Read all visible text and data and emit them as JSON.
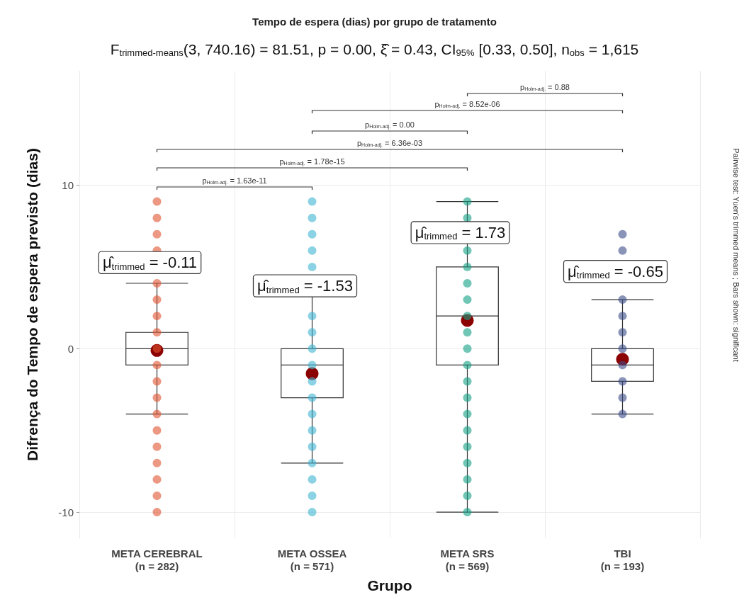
{
  "chart_data": {
    "type": "box",
    "title": "Tempo de espera (dias) por grupo de tratamento",
    "subtitle": "F$_{trimmed-means}$(3, 740.16) = 81.51, p = 0.00, ξ̂ = 0.43, CI$_{95%}$ [0.33, 0.50], n$_{obs}$ = 1,615",
    "xlabel": "Grupo",
    "ylabel": "Difrença do Tempo de espera previsto (dias)",
    "categories": [
      "META CEREBRAL\n(n = 282)",
      "META OSSEA\n(n = 571)",
      "META SRS\n(n = 569)",
      "TBI\n(n = 193)"
    ],
    "boxes": [
      {
        "low": -4,
        "q1": -1,
        "median": 0,
        "q3": 1,
        "high": 4,
        "mean": -0.11
      },
      {
        "low": -7,
        "q1": -3,
        "median": -1,
        "q3": 0,
        "high": 4,
        "mean": -1.53
      },
      {
        "low": -10,
        "q1": -1,
        "median": 2,
        "q3": 5,
        "high": 9,
        "mean": 1.73
      },
      {
        "low": -4,
        "q1": -2,
        "median": -1,
        "q3": 0,
        "high": 3,
        "mean": -0.65
      }
    ],
    "series": [
      {
        "type": "scatter",
        "color": "#e0532f",
        "x": [
          "META CEREBRAL\n(n = 282)",
          "META CEREBRAL\n(n = 282)",
          "META CEREBRAL\n(n = 282)",
          "META CEREBRAL\n(n = 282)",
          "META CEREBRAL\n(n = 282)",
          "META CEREBRAL\n(n = 282)",
          "META CEREBRAL\n(n = 282)",
          "META CEREBRAL\n(n = 282)",
          "META CEREBRAL\n(n = 282)",
          "META CEREBRAL\n(n = 282)",
          "META CEREBRAL\n(n = 282)",
          "META CEREBRAL\n(n = 282)",
          "META CEREBRAL\n(n = 282)",
          "META CEREBRAL\n(n = 282)",
          "META CEREBRAL\n(n = 282)",
          "META CEREBRAL\n(n = 282)",
          "META CEREBRAL\n(n = 282)",
          "META CEREBRAL\n(n = 282)",
          "META CEREBRAL\n(n = 282)"
        ],
        "values": [
          9,
          8,
          7,
          6,
          4,
          3,
          2,
          1,
          0,
          -1,
          -2,
          -3,
          -4,
          -5,
          -6,
          -7,
          -8,
          -9,
          -10
        ]
      },
      {
        "type": "scatter",
        "color": "#3eb4d2",
        "x": [
          "META OSSEA\n(n = 571)",
          "META OSSEA\n(n = 571)",
          "META OSSEA\n(n = 571)",
          "META OSSEA\n(n = 571)",
          "META OSSEA\n(n = 571)",
          "META OSSEA\n(n = 571)",
          "META OSSEA\n(n = 571)",
          "META OSSEA\n(n = 571)",
          "META OSSEA\n(n = 571)",
          "META OSSEA\n(n = 571)",
          "META OSSEA\n(n = 571)",
          "META OSSEA\n(n = 571)",
          "META OSSEA\n(n = 571)",
          "META OSSEA\n(n = 571)",
          "META OSSEA\n(n = 571)",
          "META OSSEA\n(n = 571)",
          "META OSSEA\n(n = 571)",
          "META OSSEA\n(n = 571)"
        ],
        "values": [
          9,
          8,
          7,
          6,
          5,
          2,
          1,
          0,
          -1,
          -2,
          -3,
          -4,
          -5,
          -6,
          -7,
          -8,
          -9,
          -10
        ]
      },
      {
        "type": "scatter",
        "color": "#14a085",
        "x": [
          "META SRS\n(n = 569)",
          "META SRS\n(n = 569)",
          "META SRS\n(n = 569)",
          "META SRS\n(n = 569)",
          "META SRS\n(n = 569)",
          "META SRS\n(n = 569)",
          "META SRS\n(n = 569)",
          "META SRS\n(n = 569)",
          "META SRS\n(n = 569)",
          "META SRS\n(n = 569)",
          "META SRS\n(n = 569)",
          "META SRS\n(n = 569)",
          "META SRS\n(n = 569)",
          "META SRS\n(n = 569)",
          "META SRS\n(n = 569)",
          "META SRS\n(n = 569)",
          "META SRS\n(n = 569)",
          "META SRS\n(n = 569)",
          "META SRS\n(n = 569)"
        ],
        "values": [
          9,
          8,
          6,
          5,
          4,
          3,
          2,
          1,
          0,
          -1,
          -2,
          -3,
          -4,
          -5,
          -6,
          -7,
          -8,
          -9,
          -10
        ]
      },
      {
        "type": "scatter",
        "color": "#3c4d88",
        "x": [
          "TBI\n(n = 193)",
          "TBI\n(n = 193)",
          "TBI\n(n = 193)",
          "TBI\n(n = 193)",
          "TBI\n(n = 193)",
          "TBI\n(n = 193)",
          "TBI\n(n = 193)",
          "TBI\n(n = 193)",
          "TBI\n(n = 193)",
          "TBI\n(n = 193)"
        ],
        "values": [
          7,
          6,
          3,
          2,
          1,
          0,
          -1,
          -2,
          -3,
          -4
        ]
      }
    ],
    "ylim": [
      -11.6,
      17
    ],
    "yticks": [
      -10,
      0,
      10
    ],
    "grid": true,
    "legend": false,
    "annotations": [
      "μ̂$_{trimmed}$ = -0.11",
      "μ̂$_{trimmed}$ = -1.53",
      "μ̂$_{trimmed}$ = 1.73",
      "μ̂$_{trimmed}$ = -0.65",
      "p$_{Holm-adj.}$ = 1.63e-11",
      "p$_{Holm-adj.}$ = 1.78e-15",
      "p$_{Holm-adj.}$ = 6.36e-03",
      "p$_{Holm-adj.}$ = 0.00",
      "p$_{Holm-adj.}$ = 8.52e-06",
      "p$_{Holm-adj.}$ = 0.88",
      "Pairwise test: Yuen's trimmed means ; Bars shown: significant"
    ]
  }
}
